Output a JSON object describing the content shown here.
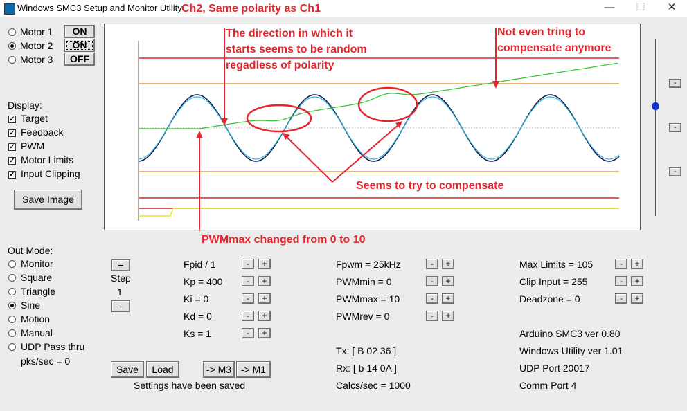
{
  "window": {
    "title": "Windows SMC3 Setup and Monitor Utility",
    "subtitle_annotation": "Ch2, Same polarity as Ch1"
  },
  "motors": [
    {
      "label": "Motor 1",
      "selected": false,
      "button": "ON"
    },
    {
      "label": "Motor 2",
      "selected": true,
      "button": "ON"
    },
    {
      "label": "Motor 3",
      "selected": false,
      "button": "OFF"
    }
  ],
  "display": {
    "title": "Display:",
    "items": [
      {
        "label": "Target",
        "checked": true
      },
      {
        "label": "Feedback",
        "checked": true
      },
      {
        "label": "PWM",
        "checked": true
      },
      {
        "label": "Motor Limits",
        "checked": true
      },
      {
        "label": "Input Clipping",
        "checked": true
      }
    ],
    "save_image": "Save Image"
  },
  "out_mode": {
    "title": "Out Mode:",
    "items": [
      {
        "label": "Monitor",
        "selected": false
      },
      {
        "label": "Square",
        "selected": false
      },
      {
        "label": "Triangle",
        "selected": false
      },
      {
        "label": "Sine",
        "selected": true
      },
      {
        "label": "Motion",
        "selected": false
      },
      {
        "label": "Manual",
        "selected": false
      },
      {
        "label": "UDP Pass thru",
        "selected": false
      }
    ],
    "pks": "pks/sec = 0"
  },
  "step": {
    "plus": "+",
    "label": "Step",
    "value": "1",
    "minus": "-"
  },
  "pid": {
    "fpid": "Fpid / 1",
    "kp": "Kp = 400",
    "ki": "Ki = 0",
    "kd": "Kd = 0",
    "ks": "Ks = 1"
  },
  "pwm": {
    "fpwm": "Fpwm = 25kHz",
    "pwmmin": "PWMmin = 0",
    "pwmmax": "PWMmax = 10",
    "pwmrev": "PWMrev = 0"
  },
  "comm": {
    "tx": "Tx: [ B 02 36 ]",
    "rx": "Rx: [ b 14 0A ]",
    "calcs": "Calcs/sec = 1000"
  },
  "limits": {
    "max": "Max Limits = 105",
    "clip": "Clip Input = 255",
    "deadzone": "Deadzone = 0"
  },
  "info": {
    "arduino": "Arduino SMC3 ver 0.80",
    "utility": "Windows Utility ver 1.01",
    "udp": "UDP Port 20017",
    "port": "Comm Port 4"
  },
  "buttons": {
    "save": "Save",
    "load": "Load",
    "to_m3": "-> M3",
    "to_m1": "-> M1",
    "minus": "-",
    "plus": "+"
  },
  "status": "Settings have been saved",
  "annotations": {
    "direction": [
      "The direction in which it",
      "starts seems to be random",
      "regadless of polarity"
    ],
    "not_even": [
      "Not even tring to",
      "compensate anymore"
    ],
    "seems": "Seems to try to compensate",
    "pwmmax": "PWMmax changed from 0 to 10"
  },
  "colors": {
    "target": "#1a1a4a",
    "feedback": "#29b6e0",
    "pwm": "#33c233",
    "limits": "#c00000",
    "clip": "#e08a20",
    "clip_yellow": "#f0e020",
    "annotation": "#e3262e",
    "slider_knob": "#1030d0"
  }
}
